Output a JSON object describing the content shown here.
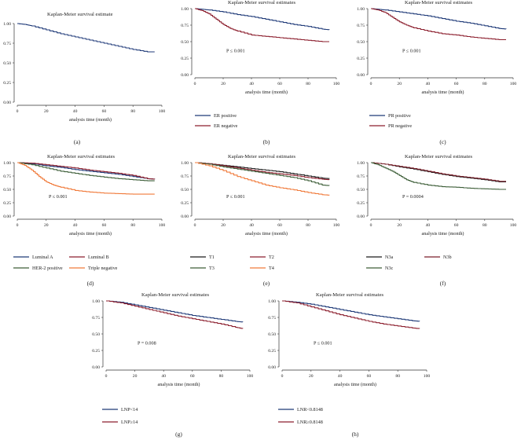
{
  "figure": {
    "xlabel": "analysis time (month)",
    "x_ticks": [
      0,
      20,
      40,
      60,
      80,
      100
    ],
    "y_ticks": [
      "0.00",
      "0.25",
      "0.50",
      "0.75",
      "1.00"
    ],
    "colors": {
      "blue": "#1f3a78",
      "red": "#8c1f2e",
      "green": "#3d5e38",
      "orange": "#f07a3a",
      "black": "#1a1a1a",
      "maroon": "#7a1f2a"
    }
  },
  "chart_data": [
    {
      "id": "a",
      "type": "line",
      "caption": "(a)",
      "title": "Kaplan-Meier survival estimate",
      "xlabel": "analysis time (month)",
      "xlim": [
        0,
        100
      ],
      "ylim": [
        0,
        1
      ],
      "pvalue": "",
      "series": [
        {
          "name": "",
          "color": "#1f3a78",
          "x": [
            0,
            5,
            10,
            20,
            30,
            40,
            50,
            60,
            70,
            80,
            90,
            95
          ],
          "y": [
            1.0,
            0.99,
            0.97,
            0.92,
            0.87,
            0.83,
            0.79,
            0.75,
            0.71,
            0.67,
            0.64,
            0.64
          ]
        }
      ],
      "legend": []
    },
    {
      "id": "b",
      "type": "line",
      "caption": "(b)",
      "title": "Kaplan-Meier survival estimates",
      "xlabel": "analysis time (month)",
      "xlim": [
        0,
        100
      ],
      "ylim": [
        0,
        1
      ],
      "pvalue": "P ≤ 0.001",
      "series": [
        {
          "name": "ER positive",
          "color": "#1f3a78",
          "x": [
            0,
            5,
            10,
            20,
            30,
            40,
            50,
            60,
            70,
            80,
            90,
            95
          ],
          "y": [
            1.0,
            0.99,
            0.98,
            0.95,
            0.91,
            0.88,
            0.84,
            0.8,
            0.76,
            0.73,
            0.69,
            0.68
          ]
        },
        {
          "name": "ER negative",
          "color": "#8c1f2e",
          "x": [
            0,
            5,
            10,
            15,
            20,
            25,
            30,
            40,
            50,
            60,
            70,
            80,
            90,
            95
          ],
          "y": [
            1.0,
            0.97,
            0.92,
            0.84,
            0.76,
            0.7,
            0.66,
            0.6,
            0.58,
            0.56,
            0.54,
            0.52,
            0.5,
            0.5
          ]
        }
      ],
      "legend": [
        "ER positive",
        "ER negative"
      ]
    },
    {
      "id": "c",
      "type": "line",
      "caption": "(c)",
      "title": "Kaplan-Meier survival estimates",
      "xlabel": "analysis time (month)",
      "xlim": [
        0,
        100
      ],
      "ylim": [
        0,
        1
      ],
      "pvalue": "P ≤ 0.001",
      "series": [
        {
          "name": "PR positive",
          "color": "#1f3a78",
          "x": [
            0,
            5,
            10,
            20,
            30,
            40,
            50,
            60,
            70,
            80,
            90,
            95
          ],
          "y": [
            1.0,
            0.99,
            0.98,
            0.95,
            0.92,
            0.89,
            0.85,
            0.81,
            0.78,
            0.74,
            0.7,
            0.69
          ]
        },
        {
          "name": "PR negative",
          "color": "#8c1f2e",
          "x": [
            0,
            5,
            10,
            15,
            20,
            25,
            30,
            40,
            50,
            60,
            70,
            80,
            90,
            95
          ],
          "y": [
            1.0,
            0.98,
            0.94,
            0.87,
            0.8,
            0.75,
            0.71,
            0.66,
            0.62,
            0.6,
            0.57,
            0.55,
            0.53,
            0.53
          ]
        }
      ],
      "legend": [
        "PR positive",
        "PR negative"
      ]
    },
    {
      "id": "d",
      "type": "line",
      "caption": "(d)",
      "title": "Kaplan-Meier survival estimates",
      "xlabel": "analysis time (month)",
      "xlim": [
        0,
        100
      ],
      "ylim": [
        0,
        1
      ],
      "pvalue": "P ≤ 0.001",
      "series": [
        {
          "name": "Luminal A",
          "color": "#1f3a78",
          "x": [
            0,
            10,
            20,
            30,
            40,
            50,
            60,
            70,
            80,
            90,
            95
          ],
          "y": [
            1.0,
            0.98,
            0.94,
            0.91,
            0.87,
            0.84,
            0.81,
            0.78,
            0.74,
            0.7,
            0.69
          ]
        },
        {
          "name": "Luminal B",
          "color": "#8c1f2e",
          "x": [
            0,
            10,
            20,
            30,
            40,
            50,
            60,
            70,
            80,
            90,
            95
          ],
          "y": [
            1.0,
            0.99,
            0.96,
            0.93,
            0.9,
            0.86,
            0.83,
            0.8,
            0.76,
            0.7,
            0.69
          ]
        },
        {
          "name": "HER-2 positive",
          "color": "#3d5e38",
          "x": [
            0,
            10,
            20,
            30,
            40,
            50,
            60,
            70,
            80,
            90,
            95
          ],
          "y": [
            1.0,
            0.96,
            0.9,
            0.84,
            0.8,
            0.76,
            0.73,
            0.7,
            0.68,
            0.66,
            0.66
          ]
        },
        {
          "name": "Triple negative",
          "color": "#f07a3a",
          "x": [
            0,
            5,
            10,
            15,
            20,
            25,
            30,
            40,
            50,
            60,
            70,
            80,
            90,
            95
          ],
          "y": [
            1.0,
            0.95,
            0.86,
            0.74,
            0.64,
            0.58,
            0.54,
            0.48,
            0.45,
            0.43,
            0.42,
            0.41,
            0.41,
            0.41
          ]
        }
      ],
      "legend": [
        "Luminal A",
        "Luminal B",
        "HER-2 positive",
        "Triple negative"
      ]
    },
    {
      "id": "e",
      "type": "line",
      "caption": "(e)",
      "title": "Kaplan-Meier survival estimates",
      "xlabel": "analysis time (month)",
      "xlim": [
        0,
        100
      ],
      "ylim": [
        0,
        1
      ],
      "pvalue": "P ≤ 0.001",
      "series": [
        {
          "name": "T1",
          "color": "#1a1a1a",
          "x": [
            0,
            10,
            20,
            30,
            40,
            50,
            60,
            70,
            80,
            90,
            95
          ],
          "y": [
            1.0,
            0.98,
            0.95,
            0.92,
            0.89,
            0.86,
            0.83,
            0.79,
            0.75,
            0.71,
            0.7
          ]
        },
        {
          "name": "T2",
          "color": "#8c1f2e",
          "x": [
            0,
            10,
            20,
            30,
            40,
            50,
            60,
            70,
            80,
            90,
            95
          ],
          "y": [
            1.0,
            0.98,
            0.94,
            0.9,
            0.86,
            0.82,
            0.79,
            0.76,
            0.72,
            0.69,
            0.68
          ]
        },
        {
          "name": "T3",
          "color": "#3d5e38",
          "x": [
            0,
            10,
            20,
            30,
            40,
            50,
            60,
            70,
            80,
            90,
            95
          ],
          "y": [
            1.0,
            0.97,
            0.92,
            0.88,
            0.84,
            0.8,
            0.76,
            0.72,
            0.66,
            0.58,
            0.57
          ]
        },
        {
          "name": "T4",
          "color": "#f07a3a",
          "x": [
            0,
            10,
            20,
            30,
            40,
            50,
            60,
            70,
            80,
            90,
            95
          ],
          "y": [
            1.0,
            0.94,
            0.85,
            0.74,
            0.66,
            0.58,
            0.53,
            0.49,
            0.44,
            0.4,
            0.39
          ]
        }
      ],
      "legend": [
        "T1",
        "T2",
        "T3",
        "T4"
      ]
    },
    {
      "id": "f",
      "type": "line",
      "caption": "(f)",
      "title": "Kaplan-Meier survival estimates",
      "xlabel": "analysis time (month)",
      "xlim": [
        0,
        100
      ],
      "ylim": [
        0,
        1
      ],
      "pvalue": "P = 0.0004",
      "series": [
        {
          "name": "N3a",
          "color": "#1a1a1a",
          "x": [
            0,
            10,
            20,
            30,
            40,
            50,
            60,
            70,
            80,
            90,
            95
          ],
          "y": [
            1.0,
            0.97,
            0.92,
            0.88,
            0.83,
            0.78,
            0.74,
            0.71,
            0.68,
            0.64,
            0.64
          ]
        },
        {
          "name": "N3b",
          "color": "#7a1f2a",
          "x": [
            0,
            10,
            20,
            30,
            40,
            50,
            60,
            70,
            80,
            90,
            95
          ],
          "y": [
            1.0,
            0.97,
            0.93,
            0.89,
            0.84,
            0.79,
            0.75,
            0.72,
            0.69,
            0.65,
            0.65
          ]
        },
        {
          "name": "N3c",
          "color": "#3d5e38",
          "x": [
            0,
            5,
            10,
            15,
            20,
            25,
            30,
            40,
            50,
            60,
            70,
            80,
            90,
            95
          ],
          "y": [
            1.0,
            0.96,
            0.9,
            0.84,
            0.76,
            0.68,
            0.63,
            0.58,
            0.55,
            0.54,
            0.52,
            0.51,
            0.5,
            0.5
          ]
        }
      ],
      "legend": [
        "N3a",
        "N3b",
        "N3c"
      ]
    },
    {
      "id": "g",
      "type": "line",
      "caption": "(g)",
      "title": "Kaplan-Meier survival estimates",
      "xlabel": "analysis time (month)",
      "xlim": [
        0,
        100
      ],
      "ylim": [
        0,
        1
      ],
      "pvalue": "P = 0.008",
      "series": [
        {
          "name": "LNP<14",
          "color": "#1f3a78",
          "x": [
            0,
            10,
            20,
            30,
            40,
            50,
            60,
            70,
            80,
            90,
            95
          ],
          "y": [
            1.0,
            0.98,
            0.94,
            0.9,
            0.86,
            0.82,
            0.78,
            0.75,
            0.72,
            0.69,
            0.68
          ]
        },
        {
          "name": "LNP≥14",
          "color": "#8c1f2e",
          "x": [
            0,
            10,
            20,
            30,
            40,
            50,
            60,
            70,
            80,
            90,
            95
          ],
          "y": [
            1.0,
            0.97,
            0.92,
            0.87,
            0.82,
            0.77,
            0.73,
            0.69,
            0.65,
            0.6,
            0.58
          ]
        }
      ],
      "legend": [
        "LNP<14",
        "LNP≥14"
      ]
    },
    {
      "id": "h",
      "type": "line",
      "caption": "(h)",
      "title": "Kaplan-Meier survival estimates",
      "xlabel": "analysis time (month)",
      "xlim": [
        0,
        100
      ],
      "ylim": [
        0,
        1
      ],
      "pvalue": "P ≤ 0.001",
      "series": [
        {
          "name": "LNR<0.8148",
          "color": "#1f3a78",
          "x": [
            0,
            10,
            20,
            30,
            40,
            50,
            60,
            70,
            80,
            90,
            95
          ],
          "y": [
            1.0,
            0.98,
            0.95,
            0.91,
            0.87,
            0.83,
            0.79,
            0.76,
            0.73,
            0.7,
            0.69
          ]
        },
        {
          "name": "LNR≥0.8148",
          "color": "#8c1f2e",
          "x": [
            0,
            10,
            20,
            30,
            40,
            50,
            60,
            70,
            80,
            90,
            95
          ],
          "y": [
            1.0,
            0.97,
            0.91,
            0.85,
            0.79,
            0.74,
            0.69,
            0.65,
            0.62,
            0.59,
            0.58
          ]
        }
      ],
      "legend": [
        "LNR<0.8148",
        "LNR≥0.8148"
      ]
    }
  ]
}
